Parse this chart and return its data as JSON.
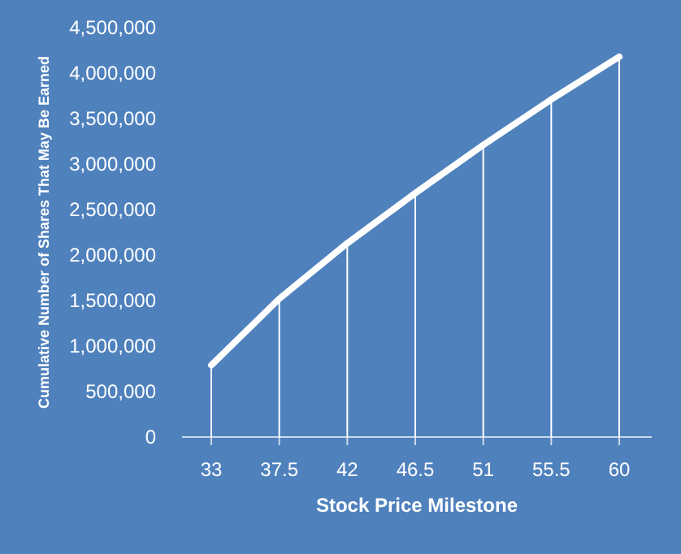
{
  "chart_data": {
    "type": "line",
    "xlabel": "Stock Price Milestone",
    "ylabel": "Cumulative Number of Shares That May Be Earned",
    "categories": [
      "33",
      "37.5",
      "42",
      "46.5",
      "51",
      "55.5",
      "60"
    ],
    "series": [
      {
        "type": "bar",
        "color": "#ffffff",
        "values": [
          790000,
          1520000,
          2130000,
          2680000,
          3210000,
          3710000,
          4180000
        ]
      },
      {
        "color": "#ffffff",
        "values": [
          790000,
          1520000,
          2130000,
          2680000,
          3210000,
          3710000,
          4180000
        ]
      }
    ],
    "ylim": [
      0,
      4500000
    ],
    "yticks": [
      {
        "value": 0,
        "label": "0"
      },
      {
        "value": 500000,
        "label": "500,000"
      },
      {
        "value": 1000000,
        "label": "1,000,000"
      },
      {
        "value": 1500000,
        "label": "1,500,000"
      },
      {
        "value": 2000000,
        "label": "2,000,000"
      },
      {
        "value": 2500000,
        "label": "2,500,000"
      },
      {
        "value": 3000000,
        "label": "3,000,000"
      },
      {
        "value": 3500000,
        "label": "3,500,000"
      },
      {
        "value": 4000000,
        "label": "4,000,000"
      },
      {
        "value": 4500000,
        "label": "4,500,000"
      }
    ],
    "grid": false,
    "marker": "none",
    "line_style": "solid"
  }
}
